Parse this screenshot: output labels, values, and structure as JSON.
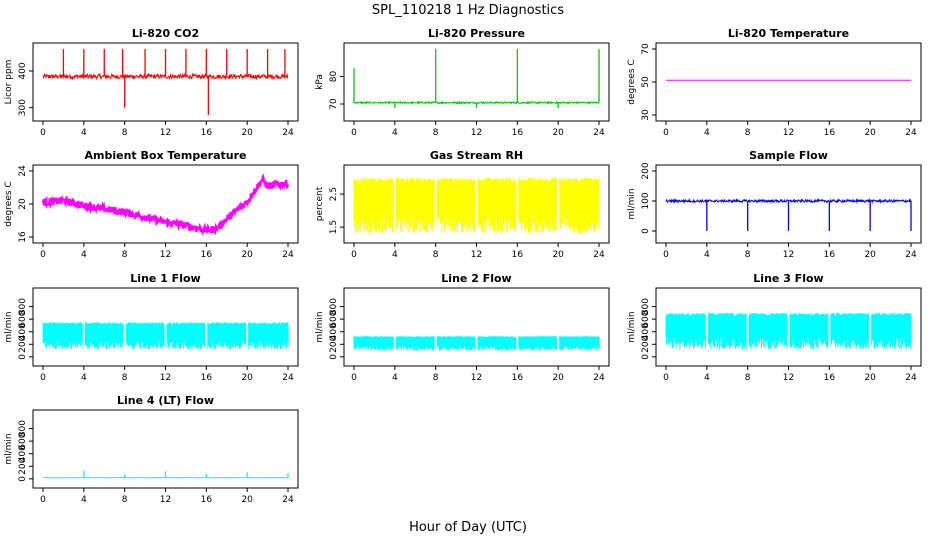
{
  "figure": {
    "title": "SPL_110218  1 Hz Diagnostics",
    "xlabel": "Hour of Day (UTC)"
  },
  "chart_data": [
    {
      "type": "line",
      "title": "Li-820 CO2",
      "ylabel": "Licor ppm",
      "xlim": [
        0,
        24
      ],
      "xticks": [
        0,
        4,
        8,
        12,
        16,
        20,
        24
      ],
      "ylim": [
        280,
        460
      ],
      "yticks": [
        300,
        400
      ],
      "color": "#ff0000",
      "baseline": 385,
      "noise": 6,
      "spikes": [
        [
          2,
          460
        ],
        [
          4,
          460
        ],
        [
          6,
          460
        ],
        [
          7.8,
          460
        ],
        [
          8,
          300
        ],
        [
          10,
          460
        ],
        [
          12,
          460
        ],
        [
          14,
          460
        ],
        [
          16,
          460
        ],
        [
          16.2,
          280
        ],
        [
          18,
          460
        ],
        [
          20,
          460
        ],
        [
          22,
          460
        ],
        [
          23.7,
          460
        ]
      ]
    },
    {
      "type": "line",
      "title": "Li-820 Pressure",
      "ylabel": "kPa",
      "xlim": [
        0,
        24
      ],
      "xticks": [
        0,
        4,
        8,
        12,
        16,
        20,
        24
      ],
      "ylim": [
        66,
        90
      ],
      "yticks": [
        70,
        80
      ],
      "color": "#00cc00",
      "baseline": 70.5,
      "noise": 0.3,
      "spikes": [
        [
          0,
          83
        ],
        [
          4,
          68.5
        ],
        [
          8,
          90
        ],
        [
          12,
          68.5
        ],
        [
          16,
          90
        ],
        [
          20,
          68.5
        ],
        [
          24,
          90
        ]
      ]
    },
    {
      "type": "line",
      "title": "Li-820 Temperature",
      "ylabel": "degrees C",
      "xlim": [
        0,
        24
      ],
      "xticks": [
        0,
        4,
        8,
        12,
        16,
        20,
        24
      ],
      "ylim": [
        30,
        70
      ],
      "yticks": [
        30,
        50,
        70
      ],
      "color": "#ff00ff",
      "baseline": 51,
      "noise": 0,
      "spikes": []
    },
    {
      "type": "line",
      "title": "Ambient Box Temperature",
      "ylabel": "degrees C",
      "xlim": [
        0,
        24
      ],
      "xticks": [
        0,
        4,
        8,
        12,
        16,
        20,
        24
      ],
      "ylim": [
        16,
        24
      ],
      "yticks": [
        16,
        20,
        24
      ],
      "color": "#ff00ff",
      "trend": [
        [
          0,
          20.2
        ],
        [
          2,
          20.4
        ],
        [
          4,
          19.8
        ],
        [
          8,
          19.0
        ],
        [
          12,
          17.8
        ],
        [
          14,
          17.4
        ],
        [
          16,
          16.8
        ],
        [
          17,
          17.0
        ],
        [
          18,
          18.2
        ],
        [
          20,
          20.3
        ],
        [
          21.5,
          23.0
        ],
        [
          22,
          22.2
        ],
        [
          24,
          22.5
        ]
      ],
      "noise": 0.45,
      "spikes": []
    },
    {
      "type": "line",
      "title": "Gas Stream RH",
      "ylabel": "percent",
      "xlim": [
        0,
        24
      ],
      "xticks": [
        0,
        4,
        8,
        12,
        16,
        20,
        24
      ],
      "ylim": [
        1.2,
        3.2
      ],
      "yticks": [
        1.5,
        2.5
      ],
      "color": "#ffff00",
      "band": [
        1.3,
        3.0
      ],
      "spikes": []
    },
    {
      "type": "line",
      "title": "Sample Flow",
      "ylabel": "ml/min",
      "xlim": [
        0,
        24
      ],
      "xticks": [
        0,
        4,
        8,
        12,
        16,
        20,
        24
      ],
      "ylim": [
        -20,
        200
      ],
      "yticks": [
        0,
        100,
        200
      ],
      "color": "#0000ff",
      "baseline": 100,
      "noise": 4,
      "spikes": [
        [
          4,
          0
        ],
        [
          8,
          0
        ],
        [
          12,
          0
        ],
        [
          16,
          0
        ],
        [
          20,
          0
        ],
        [
          24,
          0
        ]
      ]
    },
    {
      "type": "line",
      "title": "Line 1 Flow",
      "ylabel": "ml/min",
      "xlim": [
        0,
        24
      ],
      "xticks": [
        0,
        4,
        8,
        12,
        16,
        20,
        24
      ],
      "ylim": [
        -50,
        1000
      ],
      "yticks": [
        0,
        200,
        400,
        600,
        800
      ],
      "color": "#00ffff",
      "band": [
        120,
        550
      ],
      "spikes": []
    },
    {
      "type": "line",
      "title": "Line 2 Flow",
      "ylabel": "ml/min",
      "xlim": [
        0,
        24
      ],
      "xticks": [
        0,
        4,
        8,
        12,
        16,
        20,
        24
      ],
      "ylim": [
        -50,
        1000
      ],
      "yticks": [
        0,
        200,
        400,
        600,
        800
      ],
      "color": "#00ffff",
      "band": [
        100,
        330
      ],
      "spikes": []
    },
    {
      "type": "line",
      "title": "Line 3 Flow",
      "ylabel": "ml/min",
      "xlim": [
        0,
        24
      ],
      "xticks": [
        0,
        4,
        8,
        12,
        16,
        20,
        24
      ],
      "ylim": [
        -50,
        1000
      ],
      "yticks": [
        0,
        200,
        400,
        600,
        800
      ],
      "color": "#00ffff",
      "band": [
        120,
        700
      ],
      "spikes": []
    },
    {
      "type": "line",
      "title": "Line 4 (LT) Flow",
      "ylabel": "ml/min",
      "xlim": [
        0,
        24
      ],
      "xticks": [
        0,
        4,
        8,
        12,
        16,
        20,
        24
      ],
      "ylim": [
        -50,
        1000
      ],
      "yticks": [
        0,
        200,
        400,
        600,
        800
      ],
      "color": "#00ffff",
      "baseline": 20,
      "noise": 3,
      "spikes": [
        [
          4,
          130
        ],
        [
          8,
          70
        ],
        [
          12,
          120
        ],
        [
          16,
          80
        ],
        [
          20,
          110
        ],
        [
          24,
          90
        ]
      ]
    }
  ]
}
